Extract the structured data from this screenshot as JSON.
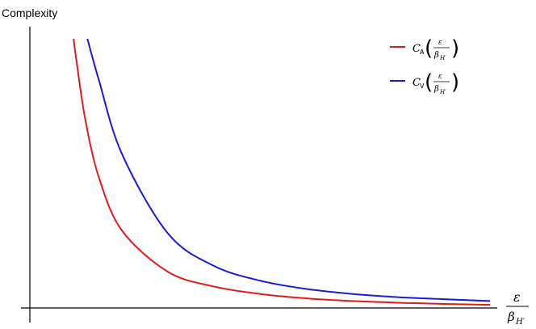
{
  "chart_data": {
    "type": "line",
    "title": "",
    "ylabel": "Complexity",
    "xlabel": {
      "numerator": "ε",
      "denominator_symbol": "β",
      "denominator_subscript": "H′"
    },
    "x_ticks": "none",
    "y_ticks": "none",
    "grid": false,
    "legend_position": "top-right",
    "series": [
      {
        "name": "C_A(ε/β_H′)",
        "legend": {
          "symbol": "C",
          "subscript": "A",
          "arg_numerator": "ε",
          "arg_denominator_symbol": "β",
          "arg_denominator_subscript": "H′"
        },
        "color": "#e31a1c",
        "shape": "decreasing-reciprocal",
        "x": [
          0.095,
          0.1,
          0.12,
          0.15,
          0.2,
          0.3,
          0.4,
          0.5,
          0.6,
          0.7,
          0.8,
          0.9,
          1.0
        ],
        "values": [
          0.91,
          0.85,
          0.64,
          0.44,
          0.26,
          0.12,
          0.07,
          0.045,
          0.03,
          0.021,
          0.015,
          0.011,
          0.008
        ]
      },
      {
        "name": "C_V(ε/β_H′)",
        "legend": {
          "symbol": "C",
          "subscript": "V",
          "arg_numerator": "ε",
          "arg_denominator_symbol": "β",
          "arg_denominator_subscript": "H′"
        },
        "color": "#1a1adc",
        "shape": "decreasing-reciprocal",
        "x": [
          0.125,
          0.15,
          0.2,
          0.3,
          0.4,
          0.5,
          0.6,
          0.7,
          0.8,
          0.9,
          1.0
        ],
        "values": [
          0.91,
          0.77,
          0.52,
          0.25,
          0.14,
          0.09,
          0.062,
          0.045,
          0.034,
          0.027,
          0.021
        ]
      }
    ]
  }
}
